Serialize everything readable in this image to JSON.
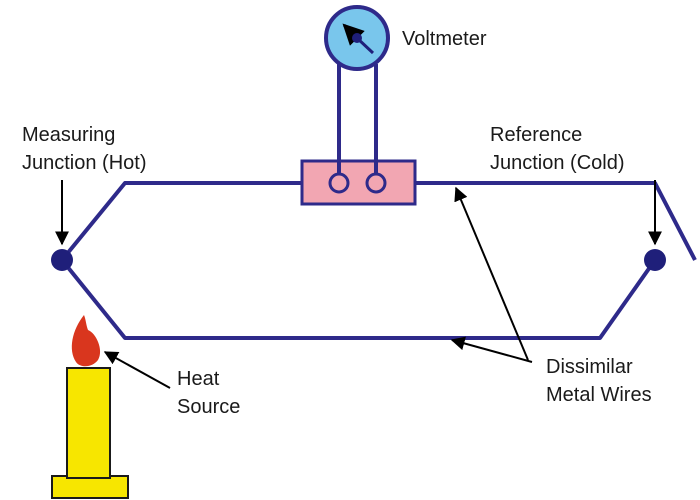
{
  "labels": {
    "voltmeter": "Voltmeter",
    "measuring_line1": "Measuring",
    "measuring_line2": "Junction (Hot)",
    "reference_line1": "Reference",
    "reference_line2": "Junction (Cold)",
    "heat_line1": "Heat",
    "heat_line2": "Source",
    "wires_line1": "Dissimilar",
    "wires_line2": "Metal Wires"
  },
  "colors": {
    "wire": "#2e2a8a",
    "junction": "#1f1f7a",
    "voltmeter_face": "#79c6ec",
    "terminal_block": "#f2a6b2",
    "candle_body": "#f7e600",
    "flame": "#d9361e",
    "arrow": "#000000"
  },
  "icons": [
    "voltmeter-icon",
    "candle-icon",
    "flame-icon"
  ]
}
